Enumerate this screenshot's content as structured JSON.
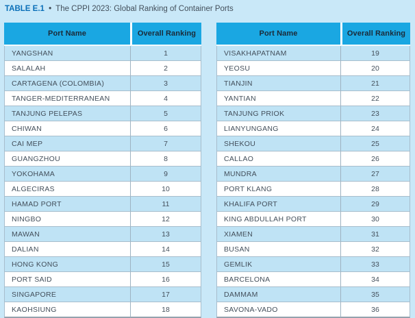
{
  "title": {
    "label": "TABLE E.1",
    "separator": "•",
    "text": "The CPPI 2023: Global Ranking of Container Ports"
  },
  "columns": {
    "port": "Port Name",
    "ranking": "Overall Ranking"
  },
  "tables": {
    "left": {
      "rows": [
        {
          "port": "YANGSHAN",
          "rank": "1"
        },
        {
          "port": "SALALAH",
          "rank": "2"
        },
        {
          "port": "CARTAGENA (COLOMBIA)",
          "rank": "3"
        },
        {
          "port": "TANGER-MEDITERRANEAN",
          "rank": "4"
        },
        {
          "port": "TANJUNG PELEPAS",
          "rank": "5"
        },
        {
          "port": "CHIWAN",
          "rank": "6"
        },
        {
          "port": "CAI MEP",
          "rank": "7"
        },
        {
          "port": "GUANGZHOU",
          "rank": "8"
        },
        {
          "port": "YOKOHAMA",
          "rank": "9"
        },
        {
          "port": "ALGECIRAS",
          "rank": "10"
        },
        {
          "port": "HAMAD PORT",
          "rank": "11"
        },
        {
          "port": "NINGBO",
          "rank": "12"
        },
        {
          "port": "MAWAN",
          "rank": "13"
        },
        {
          "port": "DALIAN",
          "rank": "14"
        },
        {
          "port": "HONG KONG",
          "rank": "15"
        },
        {
          "port": "PORT SAID",
          "rank": "16"
        },
        {
          "port": "SINGAPORE",
          "rank": "17"
        },
        {
          "port": "KAOHSIUNG",
          "rank": "18"
        }
      ]
    },
    "right": {
      "rows": [
        {
          "port": "VISAKHAPATNAM",
          "rank": "19"
        },
        {
          "port": "YEOSU",
          "rank": "20"
        },
        {
          "port": "TIANJIN",
          "rank": "21"
        },
        {
          "port": "YANTIAN",
          "rank": "22"
        },
        {
          "port": "TANJUNG PRIOK",
          "rank": "23"
        },
        {
          "port": "LIANYUNGANG",
          "rank": "24"
        },
        {
          "port": "SHEKOU",
          "rank": "25"
        },
        {
          "port": "CALLAO",
          "rank": "26"
        },
        {
          "port": "MUNDRA",
          "rank": "27"
        },
        {
          "port": "PORT KLANG",
          "rank": "28"
        },
        {
          "port": "KHALIFA PORT",
          "rank": "29"
        },
        {
          "port": "KING ABDULLAH PORT",
          "rank": "30"
        },
        {
          "port": "XIAMEN",
          "rank": "31"
        },
        {
          "port": "BUSAN",
          "rank": "32"
        },
        {
          "port": "GEMLIK",
          "rank": "33"
        },
        {
          "port": "BARCELONA",
          "rank": "34"
        },
        {
          "port": "DAMMAM",
          "rank": "35"
        },
        {
          "port": "SAVONA-VADO",
          "rank": "36"
        }
      ]
    }
  },
  "colors": {
    "page_background": "#c9e8f8",
    "header_background": "#1aa7e2",
    "header_text": "#1b2a38",
    "title_accent_blue": "#0a6fb8",
    "body_text": "#434f5b",
    "row_stripe_blue": "#bfe3f5",
    "row_white": "#ffffff",
    "row_border": "#a7bdcc",
    "bottom_border": "#93a2ad"
  }
}
